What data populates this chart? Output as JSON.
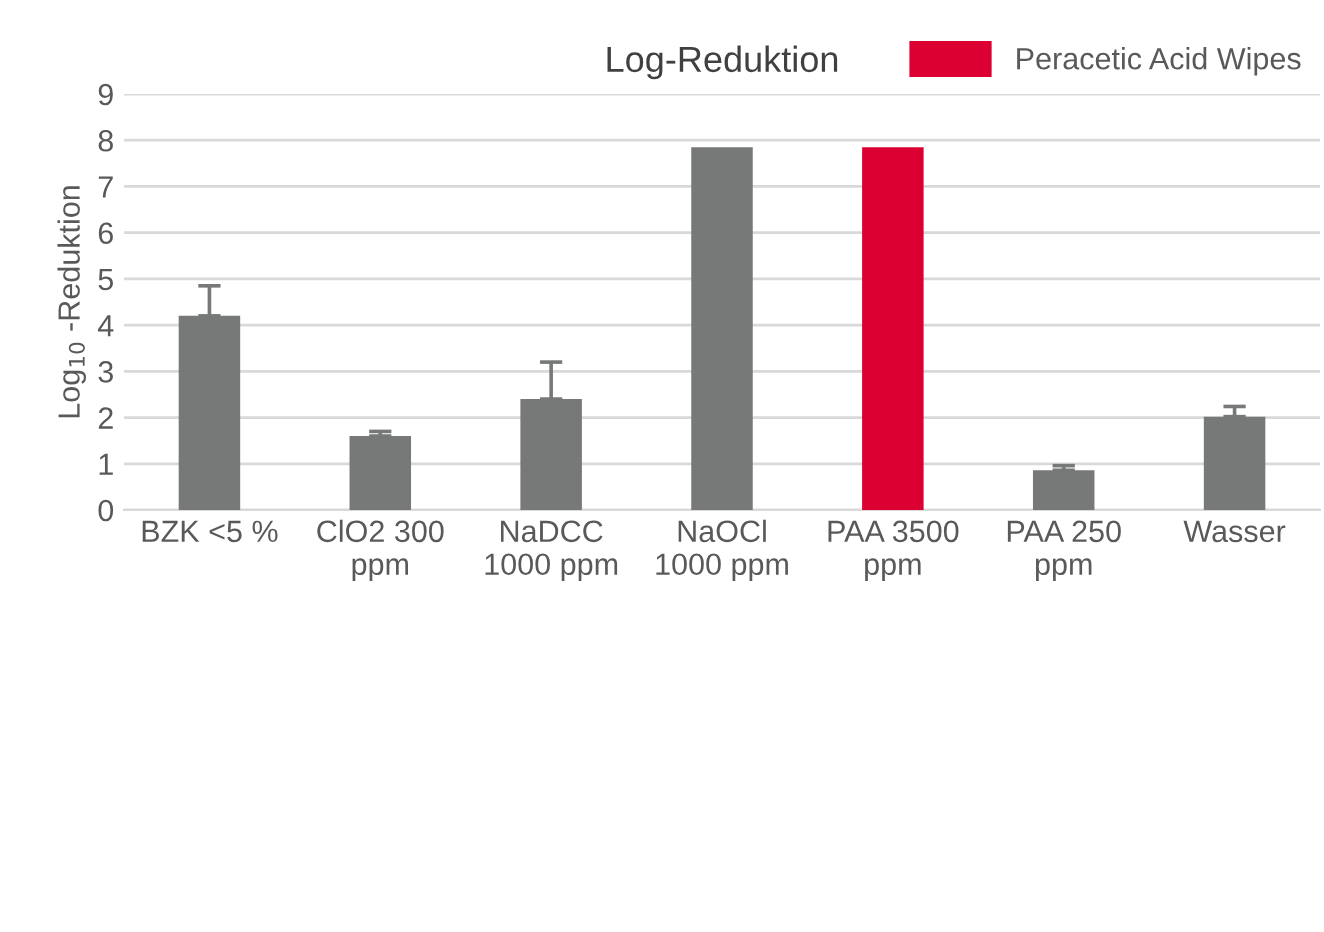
{
  "chart_data": {
    "type": "bar",
    "title": "Log-Reduktion",
    "ylabel": "Log$_{10}$ -Reduktion",
    "categories": [
      "BZK <5 %",
      "ClO2 300\nppm",
      "NaDCC\n1000 ppm",
      "NaOCl\n1000 ppm",
      "PAA 3500\nppm",
      "PAA 250\nppm",
      "Wasser"
    ],
    "stacked": true,
    "series": [
      {
        "color": "#767978",
        "values": [
          4.2,
          1.6,
          2.4,
          7.85,
          null,
          0.86,
          2.02
        ],
        "errors": [
          [
            4.2,
            4.85
          ],
          [
            1.6,
            1.7
          ],
          [
            2.4,
            3.2
          ],
          null,
          null,
          [
            0.86,
            0.96
          ],
          [
            2.02,
            2.24
          ]
        ]
      },
      {
        "name": "Peracetic Acid Wipes",
        "color": "#dc0032",
        "values": [
          null,
          null,
          null,
          null,
          7.85,
          null,
          null
        ]
      }
    ],
    "ylim": [
      0,
      9
    ],
    "yticks": [
      0,
      1,
      2,
      3,
      4,
      5,
      6,
      7,
      8,
      9
    ],
    "grid": "y",
    "legend": "top right"
  }
}
